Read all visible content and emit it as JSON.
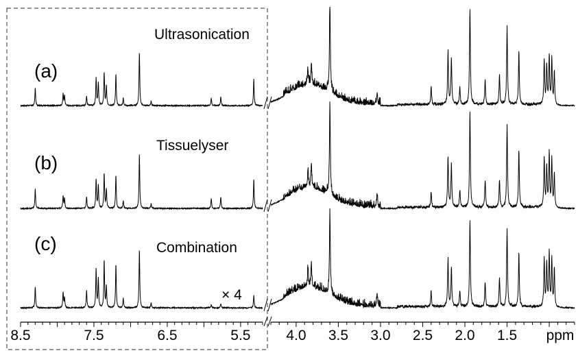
{
  "chart_data": {
    "type": "line",
    "title": "",
    "xlabel": "ppm",
    "ylabel": "",
    "x_reversed": true,
    "axis_break_between": [
      5.2,
      4.3
    ],
    "left_segment_ppm": [
      8.5,
      5.2
    ],
    "right_segment_ppm": [
      4.3,
      0.7
    ],
    "tick_labels": [
      "8.5",
      "7.5",
      "6.5",
      "5.5",
      "4.0",
      "3.5",
      "3.0",
      "2.5",
      "2.0",
      "1.5"
    ],
    "axis_unit_label": "ppm",
    "dashed_box_region_ppm": [
      8.5,
      5.2
    ],
    "scale_annotation": "× 4",
    "series": [
      {
        "id": "a",
        "panel_label": "(a)",
        "name": "Ultrasonication",
        "peaks": [
          {
            "ppm": 8.3,
            "h": 0.18
          },
          {
            "ppm": 7.92,
            "h": 0.12
          },
          {
            "ppm": 7.9,
            "h": 0.1
          },
          {
            "ppm": 7.6,
            "h": 0.1
          },
          {
            "ppm": 7.47,
            "h": 0.28
          },
          {
            "ppm": 7.44,
            "h": 0.24
          },
          {
            "ppm": 7.36,
            "h": 0.34
          },
          {
            "ppm": 7.33,
            "h": 0.2
          },
          {
            "ppm": 7.2,
            "h": 0.32
          },
          {
            "ppm": 7.1,
            "h": 0.08
          },
          {
            "ppm": 6.88,
            "h": 0.55
          },
          {
            "ppm": 6.72,
            "h": 0.05
          },
          {
            "ppm": 5.9,
            "h": 0.08
          },
          {
            "ppm": 5.77,
            "h": 0.09
          },
          {
            "ppm": 5.32,
            "h": 0.27
          },
          {
            "ppm": 3.82,
            "h": 0.22
          },
          {
            "ppm": 3.86,
            "h": 0.16
          },
          {
            "ppm": 3.6,
            "h": 0.95
          },
          {
            "ppm": 3.04,
            "h": 0.12
          },
          {
            "ppm": 2.4,
            "h": 0.18
          },
          {
            "ppm": 2.2,
            "h": 0.55
          },
          {
            "ppm": 2.16,
            "h": 0.48
          },
          {
            "ppm": 2.06,
            "h": 0.18
          },
          {
            "ppm": 1.94,
            "h": 1.0
          },
          {
            "ppm": 1.76,
            "h": 0.25
          },
          {
            "ppm": 1.59,
            "h": 0.3
          },
          {
            "ppm": 1.5,
            "h": 0.8
          },
          {
            "ppm": 1.36,
            "h": 0.55
          },
          {
            "ppm": 1.06,
            "h": 0.45
          },
          {
            "ppm": 1.03,
            "h": 0.4
          },
          {
            "ppm": 1.0,
            "h": 0.5
          },
          {
            "ppm": 0.97,
            "h": 0.48
          },
          {
            "ppm": 0.94,
            "h": 0.35
          }
        ]
      },
      {
        "id": "b",
        "panel_label": "(b)",
        "name": "Tissuelyser",
        "peaks": [
          {
            "ppm": 8.3,
            "h": 0.2
          },
          {
            "ppm": 7.92,
            "h": 0.13
          },
          {
            "ppm": 7.9,
            "h": 0.1
          },
          {
            "ppm": 7.6,
            "h": 0.12
          },
          {
            "ppm": 7.47,
            "h": 0.3
          },
          {
            "ppm": 7.44,
            "h": 0.24
          },
          {
            "ppm": 7.36,
            "h": 0.36
          },
          {
            "ppm": 7.33,
            "h": 0.2
          },
          {
            "ppm": 7.2,
            "h": 0.34
          },
          {
            "ppm": 7.1,
            "h": 0.08
          },
          {
            "ppm": 6.88,
            "h": 0.56
          },
          {
            "ppm": 6.72,
            "h": 0.05
          },
          {
            "ppm": 5.9,
            "h": 0.1
          },
          {
            "ppm": 5.77,
            "h": 0.12
          },
          {
            "ppm": 5.32,
            "h": 0.3
          },
          {
            "ppm": 3.82,
            "h": 0.24
          },
          {
            "ppm": 3.86,
            "h": 0.18
          },
          {
            "ppm": 3.6,
            "h": 0.95
          },
          {
            "ppm": 3.04,
            "h": 0.12
          },
          {
            "ppm": 2.4,
            "h": 0.16
          },
          {
            "ppm": 2.2,
            "h": 0.52
          },
          {
            "ppm": 2.16,
            "h": 0.45
          },
          {
            "ppm": 2.06,
            "h": 0.18
          },
          {
            "ppm": 1.94,
            "h": 1.0
          },
          {
            "ppm": 1.76,
            "h": 0.28
          },
          {
            "ppm": 1.59,
            "h": 0.28
          },
          {
            "ppm": 1.5,
            "h": 0.85
          },
          {
            "ppm": 1.36,
            "h": 0.6
          },
          {
            "ppm": 1.06,
            "h": 0.5
          },
          {
            "ppm": 1.03,
            "h": 0.42
          },
          {
            "ppm": 1.0,
            "h": 0.55
          },
          {
            "ppm": 0.97,
            "h": 0.5
          },
          {
            "ppm": 0.94,
            "h": 0.35
          }
        ]
      },
      {
        "id": "c",
        "panel_label": "(c)",
        "name": "Combination",
        "peaks": [
          {
            "ppm": 8.3,
            "h": 0.22
          },
          {
            "ppm": 7.92,
            "h": 0.16
          },
          {
            "ppm": 7.9,
            "h": 0.1
          },
          {
            "ppm": 7.6,
            "h": 0.18
          },
          {
            "ppm": 7.47,
            "h": 0.4
          },
          {
            "ppm": 7.44,
            "h": 0.3
          },
          {
            "ppm": 7.36,
            "h": 0.48
          },
          {
            "ppm": 7.33,
            "h": 0.22
          },
          {
            "ppm": 7.2,
            "h": 0.45
          },
          {
            "ppm": 7.1,
            "h": 0.1
          },
          {
            "ppm": 6.88,
            "h": 0.6
          },
          {
            "ppm": 6.72,
            "h": 0.05
          },
          {
            "ppm": 5.9,
            "h": 0.03
          },
          {
            "ppm": 5.77,
            "h": 0.04
          },
          {
            "ppm": 5.32,
            "h": 0.13
          },
          {
            "ppm": 3.82,
            "h": 0.24
          },
          {
            "ppm": 3.86,
            "h": 0.18
          },
          {
            "ppm": 3.6,
            "h": 0.85
          },
          {
            "ppm": 3.04,
            "h": 0.12
          },
          {
            "ppm": 2.4,
            "h": 0.16
          },
          {
            "ppm": 2.2,
            "h": 0.5
          },
          {
            "ppm": 2.16,
            "h": 0.4
          },
          {
            "ppm": 2.06,
            "h": 0.16
          },
          {
            "ppm": 1.94,
            "h": 0.9
          },
          {
            "ppm": 1.76,
            "h": 0.25
          },
          {
            "ppm": 1.59,
            "h": 0.3
          },
          {
            "ppm": 1.5,
            "h": 0.8
          },
          {
            "ppm": 1.36,
            "h": 0.55
          },
          {
            "ppm": 1.06,
            "h": 0.48
          },
          {
            "ppm": 1.03,
            "h": 0.45
          },
          {
            "ppm": 1.0,
            "h": 0.55
          },
          {
            "ppm": 0.97,
            "h": 0.5
          },
          {
            "ppm": 0.94,
            "h": 0.4
          }
        ]
      }
    ],
    "colors": {
      "line": "#000000",
      "box": "#555555",
      "background": "#ffffff"
    }
  }
}
